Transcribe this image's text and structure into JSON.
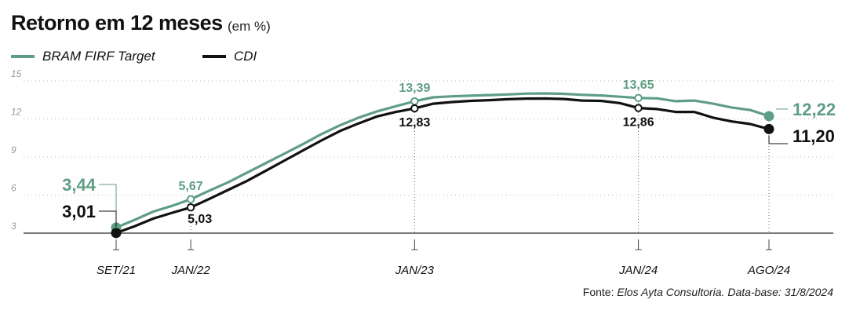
{
  "title": "Retorno em 12 meses",
  "subtitle": "(em %)",
  "source_prefix": "Fonte: ",
  "source_body": "Elos Ayta Consultoria. Data-base: 31/8/2024",
  "colors": {
    "series_a": "#5f9e84",
    "series_b": "#111111",
    "axis": "#777777",
    "grid": "#bbbbbb",
    "tick_text": "#999999"
  },
  "chart_data": {
    "type": "line",
    "title": "Retorno em 12 meses",
    "subtitle": "(em %)",
    "xlabel": "",
    "ylabel": "",
    "ylim": [
      3,
      15
    ],
    "y_ticks": [
      "3",
      "6",
      "9",
      "12",
      "15"
    ],
    "grid": true,
    "legend": "top-left",
    "x_ticks": [
      {
        "label": "SET/21",
        "index": 0
      },
      {
        "label": "JAN/22",
        "index": 4
      },
      {
        "label": "JAN/23",
        "index": 16
      },
      {
        "label": "JAN/24",
        "index": 28
      },
      {
        "label": "AGO/24",
        "index": 35
      }
    ],
    "x": [
      "SET/21",
      "OUT/21",
      "NOV/21",
      "DEZ/21",
      "JAN/22",
      "FEV/22",
      "MAR/22",
      "ABR/22",
      "MAI/22",
      "JUN/22",
      "JUL/22",
      "AGO/22",
      "SET/22",
      "OUT/22",
      "NOV/22",
      "DEZ/22",
      "JAN/23",
      "FEV/23",
      "MAR/23",
      "ABR/23",
      "MAI/23",
      "JUN/23",
      "JUL/23",
      "AGO/23",
      "SET/23",
      "OUT/23",
      "NOV/23",
      "DEZ/23",
      "JAN/24",
      "FEV/24",
      "MAR/24",
      "ABR/24",
      "MAI/24",
      "JUN/24",
      "JUL/24",
      "AGO/24"
    ],
    "series": [
      {
        "name": "BRAM FIRF Target",
        "values": [
          3.44,
          4.05,
          4.7,
          5.15,
          5.67,
          6.35,
          7.0,
          7.75,
          8.5,
          9.25,
          10.0,
          10.8,
          11.5,
          12.1,
          12.6,
          13.0,
          13.39,
          13.7,
          13.78,
          13.83,
          13.88,
          13.93,
          14.0,
          14.01,
          13.98,
          13.9,
          13.85,
          13.75,
          13.65,
          13.62,
          13.4,
          13.45,
          13.2,
          12.9,
          12.7,
          12.22
        ],
        "labels": [
          {
            "index": 0,
            "text": "3,44"
          },
          {
            "index": 4,
            "text": "5,67"
          },
          {
            "index": 16,
            "text": "13,39"
          },
          {
            "index": 28,
            "text": "13,65"
          },
          {
            "index": 35,
            "text": "12,22"
          }
        ]
      },
      {
        "name": "CDI",
        "values": [
          3.01,
          3.55,
          4.15,
          4.6,
          5.03,
          5.7,
          6.4,
          7.1,
          7.9,
          8.7,
          9.5,
          10.3,
          11.05,
          11.65,
          12.2,
          12.55,
          12.83,
          13.2,
          13.33,
          13.42,
          13.48,
          13.55,
          13.6,
          13.61,
          13.57,
          13.45,
          13.42,
          13.25,
          12.86,
          12.78,
          12.55,
          12.55,
          12.1,
          11.8,
          11.6,
          11.2
        ],
        "labels": [
          {
            "index": 0,
            "text": "3,01"
          },
          {
            "index": 4,
            "text": "5,03"
          },
          {
            "index": 16,
            "text": "12,83"
          },
          {
            "index": 28,
            "text": "12,86"
          },
          {
            "index": 35,
            "text": "11,20"
          }
        ]
      }
    ]
  }
}
